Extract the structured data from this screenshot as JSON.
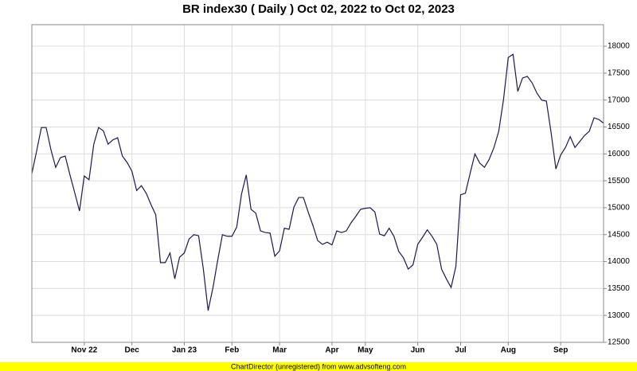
{
  "chart_data": {
    "type": "line",
    "title": "BR index30 ( Daily ) Oct 02, 2022 to Oct 02, 2023",
    "categories": [
      null,
      null,
      null,
      null,
      null,
      null,
      null,
      null,
      null,
      null,
      null,
      "Nov 22",
      null,
      null,
      null,
      null,
      null,
      null,
      null,
      null,
      null,
      "Dec",
      null,
      null,
      null,
      null,
      null,
      null,
      null,
      null,
      null,
      null,
      "Jan 23",
      null,
      null,
      null,
      null,
      null,
      null,
      null,
      null,
      null,
      "Feb",
      null,
      null,
      null,
      null,
      null,
      null,
      null,
      null,
      null,
      "Mar",
      null,
      null,
      null,
      null,
      null,
      null,
      null,
      null,
      null,
      null,
      "Apr",
      null,
      null,
      null,
      null,
      null,
      null,
      "May",
      null,
      null,
      null,
      null,
      null,
      null,
      null,
      null,
      null,
      null,
      "Jun",
      null,
      null,
      null,
      null,
      null,
      null,
      null,
      null,
      "Jul",
      null,
      null,
      null,
      null,
      null,
      null,
      null,
      null,
      null,
      "Aug",
      null,
      null,
      null,
      null,
      null,
      null,
      null,
      null,
      null,
      null,
      "Sep",
      null,
      null,
      null,
      null,
      null,
      null,
      null,
      null,
      null
    ],
    "values": [
      15635,
      16050,
      16490,
      16490,
      16080,
      15750,
      15930,
      15960,
      15610,
      15280,
      14940,
      15590,
      15520,
      16180,
      16490,
      16430,
      16180,
      16260,
      16300,
      15960,
      15840,
      15680,
      15320,
      15410,
      15270,
      15060,
      14870,
      13980,
      13980,
      14160,
      13680,
      14080,
      14160,
      14420,
      14500,
      14480,
      13860,
      13090,
      13510,
      14020,
      14500,
      14470,
      14470,
      14640,
      15250,
      15610,
      14970,
      14900,
      14570,
      14540,
      14530,
      14100,
      14200,
      14620,
      14600,
      15010,
      15190,
      15190,
      14920,
      14670,
      14390,
      14320,
      14360,
      14310,
      14570,
      14540,
      14570,
      14720,
      14840,
      14970,
      14990,
      15000,
      14920,
      14510,
      14480,
      14620,
      14470,
      14190,
      14070,
      13860,
      13940,
      14320,
      14450,
      14590,
      14470,
      14320,
      13860,
      13680,
      13520,
      13910,
      15240,
      15270,
      15640,
      16000,
      15830,
      15750,
      15900,
      16120,
      16420,
      17010,
      17790,
      17850,
      17160,
      17410,
      17440,
      17320,
      17130,
      17000,
      16980,
      16390,
      15720,
      15980,
      16120,
      16320,
      16120,
      16230,
      16340,
      16420,
      16670,
      16640,
      16570
    ],
    "color": "#1a1a4e",
    "ylim": [
      12500,
      18400
    ],
    "yticks": [
      12500,
      13000,
      13500,
      14000,
      14500,
      15000,
      15500,
      16000,
      16500,
      17000,
      17500,
      18000
    ],
    "grid": true
  },
  "footer": "ChartDirector (unregistered) from www.advsofteng.com"
}
